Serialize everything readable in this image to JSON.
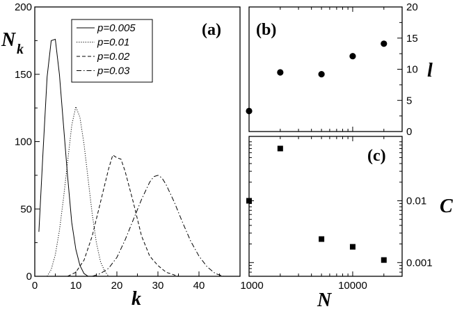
{
  "chart_data": [
    {
      "panel": "(a)",
      "type": "line",
      "xlabel": "k",
      "ylabel_main": "N",
      "ylabel_sub": "k",
      "xlim": [
        0,
        50
      ],
      "ylim": [
        0,
        200
      ],
      "xticks": [
        "0",
        "10",
        "20",
        "30",
        "40"
      ],
      "yticks": [
        "0",
        "50",
        "100",
        "150",
        "200"
      ],
      "series": [
        {
          "name": "p=0.005",
          "style": "solid",
          "x": [
            1,
            2,
            3,
            4,
            5,
            6,
            7,
            8,
            9,
            10,
            11,
            12,
            13
          ],
          "y": [
            33,
            92,
            148,
            175,
            176,
            150,
            112,
            74,
            40,
            20,
            8,
            2,
            0
          ]
        },
        {
          "name": "p=0.01",
          "style": "dotted",
          "x": [
            3,
            4,
            5,
            6,
            7,
            8,
            9,
            10,
            11,
            12,
            13,
            14,
            15,
            16,
            17,
            18
          ],
          "y": [
            0,
            5,
            16,
            34,
            58,
            85,
            112,
            126,
            118,
            98,
            72,
            46,
            25,
            11,
            4,
            0
          ]
        },
        {
          "name": "p=0.02",
          "style": "dashed",
          "x": [
            8,
            10,
            12,
            14,
            16,
            18,
            19,
            20,
            21,
            22,
            24,
            26,
            28,
            30,
            32,
            34,
            35
          ],
          "y": [
            0,
            3,
            12,
            30,
            55,
            80,
            90,
            88,
            87,
            78,
            55,
            30,
            15,
            8,
            3,
            1,
            0
          ]
        },
        {
          "name": "p=0.03",
          "style": "dashdot",
          "x": [
            14,
            16,
            18,
            20,
            22,
            24,
            26,
            28,
            29,
            30,
            31,
            32,
            34,
            36,
            38,
            40,
            42,
            44,
            46
          ],
          "y": [
            0,
            2,
            6,
            14,
            27,
            42,
            57,
            70,
            74,
            75,
            73,
            68,
            55,
            40,
            26,
            15,
            7,
            2,
            0
          ]
        }
      ]
    },
    {
      "panel": "(b)",
      "type": "scatter",
      "xscale": "log",
      "xlim": [
        1000,
        30000
      ],
      "ylim": [
        0,
        20
      ],
      "ylabel": "l",
      "yticks": [
        "0",
        "5",
        "10",
        "15",
        "20"
      ],
      "x": [
        1000,
        2000,
        5000,
        10000,
        20000
      ],
      "y": [
        3.3,
        9.5,
        9.2,
        12.1,
        14.1
      ]
    },
    {
      "panel": "(c)",
      "type": "scatter",
      "xscale": "log",
      "yscale": "log",
      "xlim": [
        1000,
        30000
      ],
      "ylim": [
        0.0006,
        0.11
      ],
      "xlabel": "N",
      "ylabel": "C",
      "xticks": [
        "1000",
        "10000"
      ],
      "yticks": [
        "0.01",
        "0.001"
      ],
      "x": [
        1000,
        2000,
        5000,
        10000,
        20000
      ],
      "y": [
        0.01,
        0.07,
        0.0024,
        0.0018,
        0.0011
      ]
    }
  ]
}
